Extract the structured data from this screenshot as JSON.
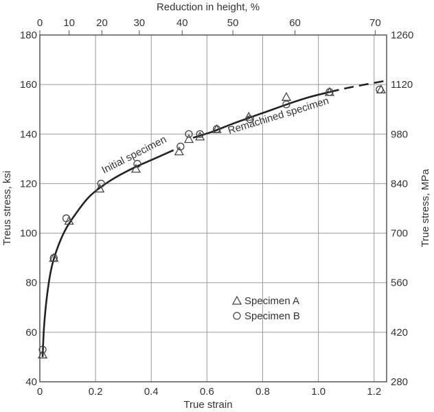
{
  "chart_data": {
    "type": "scatter",
    "title": "",
    "xlabel": "True strain",
    "ylabel": "Treus stress, ksi",
    "ylabel_right": "True stress, MPa",
    "xlabel_top": "Reduction in height, %",
    "xlim": [
      0,
      1.245
    ],
    "ylim": [
      40,
      180
    ],
    "ylim_right": [
      280,
      1260
    ],
    "grid": true,
    "x_ticks": [
      {
        "value": 0,
        "label": "0"
      },
      {
        "value": 0.2,
        "label": "0.2"
      },
      {
        "value": 0.4,
        "label": "0.4"
      },
      {
        "value": 0.6,
        "label": "0.6"
      },
      {
        "value": 0.8,
        "label": "0.8"
      },
      {
        "value": 1.0,
        "label": "1.0"
      },
      {
        "value": 1.2,
        "label": "1.2"
      }
    ],
    "y_ticks": [
      {
        "value": 40,
        "label": "40"
      },
      {
        "value": 60,
        "label": "60"
      },
      {
        "value": 80,
        "label": "80"
      },
      {
        "value": 100,
        "label": "100"
      },
      {
        "value": 120,
        "label": "120"
      },
      {
        "value": 140,
        "label": "140"
      },
      {
        "value": 160,
        "label": "160"
      },
      {
        "value": 180,
        "label": "180"
      }
    ],
    "y_right_ticks": [
      {
        "value": 40,
        "label": "280"
      },
      {
        "value": 60,
        "label": "420"
      },
      {
        "value": 80,
        "label": "560"
      },
      {
        "value": 100,
        "label": "700"
      },
      {
        "value": 120,
        "label": "840"
      },
      {
        "value": 140,
        "label": "980"
      },
      {
        "value": 160,
        "label": "1120"
      },
      {
        "value": 180,
        "label": "1260"
      }
    ],
    "top_ticks": [
      {
        "strain": 0.0,
        "label": "0"
      },
      {
        "strain": 0.105,
        "label": "10"
      },
      {
        "strain": 0.223,
        "label": "20"
      },
      {
        "strain": 0.357,
        "label": "30"
      },
      {
        "strain": 0.511,
        "label": "40"
      },
      {
        "strain": 0.693,
        "label": "50"
      },
      {
        "strain": 0.916,
        "label": "60"
      },
      {
        "strain": 1.204,
        "label": "70"
      }
    ],
    "series": [
      {
        "name": "Specimen A",
        "marker": "triangle",
        "points": [
          [
            0.01,
            51
          ],
          [
            0.05,
            90
          ],
          [
            0.105,
            105
          ],
          [
            0.215,
            118
          ],
          [
            0.345,
            126
          ],
          [
            0.5,
            133
          ],
          [
            0.535,
            138
          ],
          [
            0.575,
            139
          ],
          [
            0.635,
            142
          ],
          [
            0.75,
            147
          ],
          [
            0.885,
            155
          ],
          [
            1.04,
            157
          ],
          [
            1.225,
            158
          ]
        ]
      },
      {
        "name": "Specimen B",
        "marker": "circle",
        "points": [
          [
            0.01,
            53
          ],
          [
            0.05,
            90
          ],
          [
            0.095,
            106
          ],
          [
            0.22,
            120
          ],
          [
            0.35,
            128
          ],
          [
            0.505,
            135
          ],
          [
            0.535,
            140
          ],
          [
            0.575,
            140
          ],
          [
            0.635,
            142
          ],
          [
            0.755,
            146
          ],
          [
            0.885,
            152
          ],
          [
            1.04,
            157
          ],
          [
            1.22,
            158
          ]
        ]
      }
    ],
    "curves": [
      {
        "name": "Initial specimen",
        "style": "solid",
        "points": [
          [
            0.01,
            50
          ],
          [
            0.015,
            62
          ],
          [
            0.025,
            74
          ],
          [
            0.04,
            85
          ],
          [
            0.06,
            93
          ],
          [
            0.09,
            101
          ],
          [
            0.13,
            108
          ],
          [
            0.18,
            115
          ],
          [
            0.25,
            121
          ],
          [
            0.33,
            126
          ],
          [
            0.41,
            130
          ],
          [
            0.48,
            133.5
          ]
        ]
      },
      {
        "name": "Remachined specimen",
        "style": "solid",
        "points": [
          [
            0.55,
            138.5
          ],
          [
            0.62,
            141
          ],
          [
            0.7,
            144.5
          ],
          [
            0.8,
            148.5
          ],
          [
            0.9,
            152.5
          ],
          [
            0.97,
            155
          ],
          [
            1.04,
            157
          ]
        ]
      },
      {
        "name": "Extrapolation",
        "style": "dashed",
        "points": [
          [
            1.04,
            157
          ],
          [
            1.12,
            159
          ],
          [
            1.24,
            161.5
          ]
        ]
      }
    ],
    "annotations": [
      {
        "text": "Initial specimen",
        "x": 0.23,
        "y": 124,
        "rotation": -27
      },
      {
        "text": "Remachined specimen",
        "x": 0.68,
        "y": 140,
        "rotation": -17
      }
    ],
    "legend": {
      "position": "lower-right-inside",
      "entries": [
        {
          "marker": "triangle",
          "label": "Specimen A"
        },
        {
          "marker": "circle",
          "label": "Specimen B"
        }
      ]
    }
  },
  "colors": {
    "frame": "#555555",
    "grid": "#999999",
    "curve": "#222222",
    "marker": "#444444",
    "text": "#333333"
  }
}
